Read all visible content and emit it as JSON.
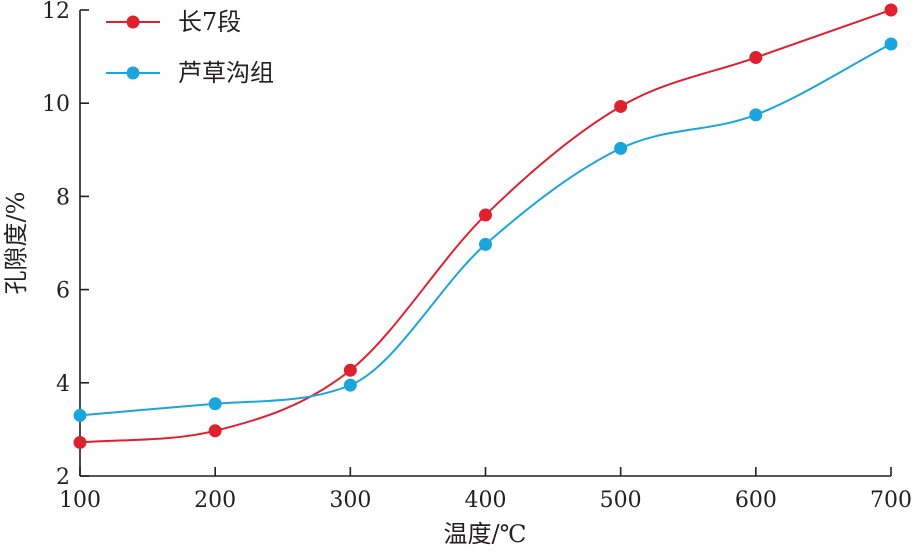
{
  "chart_data": {
    "type": "line",
    "x": [
      100,
      200,
      300,
      400,
      500,
      600,
      700
    ],
    "xlabel": "温度/℃",
    "ylabel": "孔隙度/%",
    "xlim": [
      100,
      700
    ],
    "ylim": [
      2,
      12
    ],
    "xticks": [
      "100",
      "200",
      "300",
      "400",
      "500",
      "600",
      "700"
    ],
    "yticks": [
      "2",
      "4",
      "6",
      "8",
      "10",
      "12"
    ],
    "xtick_values": [
      100,
      200,
      300,
      400,
      500,
      600,
      700
    ],
    "ytick_values": [
      2,
      4,
      6,
      8,
      10,
      12
    ],
    "grid": false,
    "smooth": true,
    "legend_position": "top-left",
    "series": [
      {
        "name": "长7段",
        "color": "#e0202e",
        "values": [
          2.72,
          2.97,
          4.27,
          7.6,
          9.93,
          10.98,
          12.0
        ]
      },
      {
        "name": "芦草沟组",
        "color": "#1aa5dc",
        "values": [
          3.3,
          3.55,
          3.95,
          6.97,
          9.03,
          9.75,
          11.27
        ]
      }
    ]
  }
}
